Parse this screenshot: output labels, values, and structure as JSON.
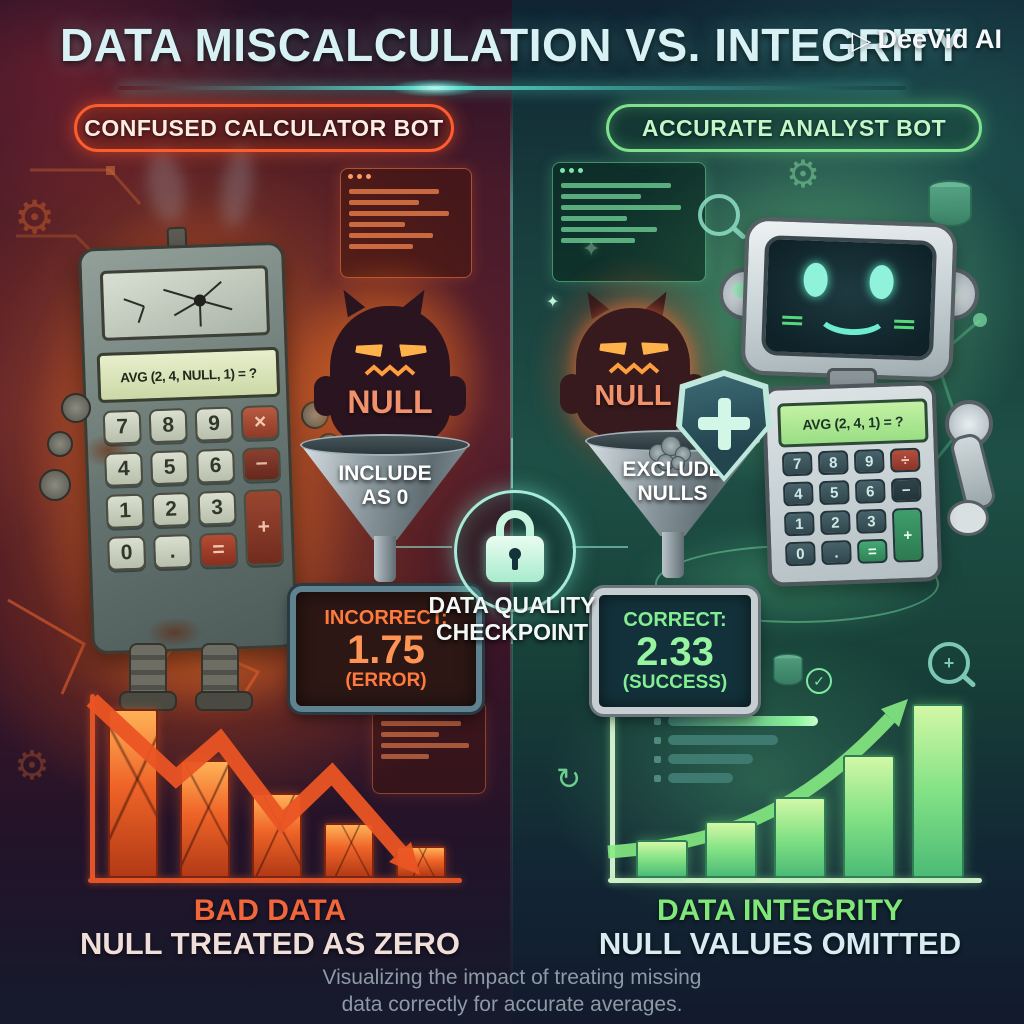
{
  "header": {
    "title": "DATA MISCALCULATION VS. INTEGRITY",
    "logo_text": "DeeVid AI"
  },
  "icons": {
    "play": "▷",
    "gear": "⚙",
    "sparkle": "✦",
    "refresh": "↻",
    "check": "✓",
    "plus": "+"
  },
  "left": {
    "badge": "CONFUSED CALCULATOR BOT",
    "calculator": {
      "display": "AVG (2, 4, NULL, 1) = ?",
      "keys": [
        "7",
        "8",
        "9",
        "×",
        "4",
        "5",
        "6",
        "−",
        "1",
        "2",
        "3",
        "+",
        "0",
        ".",
        "="
      ]
    },
    "null_monster": "NULL",
    "funnel": {
      "line1": "INCLUDE",
      "line2": "AS 0"
    },
    "result": {
      "label": "INCORRECT:",
      "value": "1.75",
      "note": "(ERROR)"
    },
    "chart": {
      "type": "bar",
      "values": [
        100,
        69,
        49,
        31,
        17
      ],
      "trend": "down",
      "color": "#e8502a"
    },
    "footer_title": "BAD DATA",
    "footer_sub": "NULL TREATED AS ZERO"
  },
  "center": {
    "checkpoint": {
      "line1": "DATA QUALITY",
      "line2": "CHECKPOINT"
    }
  },
  "right": {
    "badge": "ACCURATE ANALYST BOT",
    "null_monster": "NULL",
    "funnel": {
      "line1": "EXCLUDE",
      "line2": "NULLS"
    },
    "calculator": {
      "display": "AVG (2, 4, 1) = ?",
      "keys": [
        "7",
        "8",
        "9",
        "÷",
        "4",
        "5",
        "6",
        "−",
        "1",
        "2",
        "3",
        "+",
        "0",
        ".",
        "="
      ]
    },
    "result": {
      "label": "CORRECT:",
      "value": "2.33",
      "note": "(SUCCESS)"
    },
    "chart": {
      "type": "bar",
      "values": [
        20,
        31,
        45,
        70,
        100
      ],
      "trend": "up",
      "color": "#7de87a"
    },
    "footer_title": "DATA INTEGRITY",
    "footer_sub": "NULL VALUES OMITTED"
  },
  "footer": {
    "caption_line1": "Visualizing the impact of treating missing",
    "caption_line2": "data correctly for accurate averages."
  },
  "colors": {
    "left_accent": "#ff5a2a",
    "right_accent": "#7de87a",
    "title": "#d8f1f4",
    "checkpoint_mint": "#bff0dc"
  }
}
